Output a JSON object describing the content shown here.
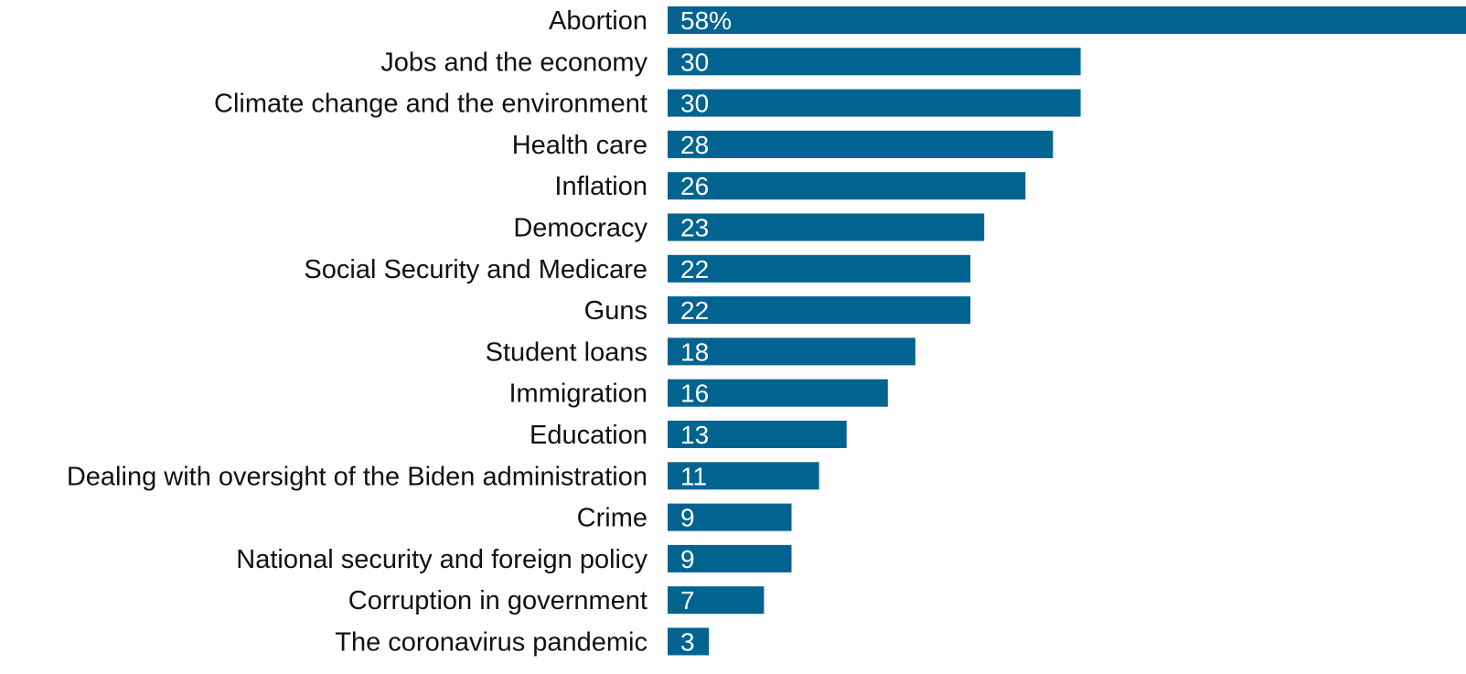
{
  "chart_data": {
    "type": "bar",
    "orientation": "horizontal",
    "title": "",
    "xlabel": "",
    "ylabel": "",
    "categories": [
      "Abortion",
      "Jobs and the economy",
      "Climate change and the environment",
      "Health care",
      "Inflation",
      "Democracy",
      "Social Security and Medicare",
      "Guns",
      "Student loans",
      "Immigration",
      "Education",
      "Dealing with oversight of the Biden administration",
      "Crime",
      "National security and foreign policy",
      "Corruption in government",
      "The coronavirus pandemic"
    ],
    "values": [
      58,
      30,
      30,
      28,
      26,
      23,
      22,
      22,
      18,
      16,
      13,
      11,
      9,
      9,
      7,
      3
    ],
    "value_labels": [
      "58%",
      "30",
      "30",
      "28",
      "26",
      "23",
      "22",
      "22",
      "18",
      "16",
      "13",
      "11",
      "9",
      "9",
      "7",
      "3"
    ],
    "xlim": [
      0,
      58
    ],
    "grid": false,
    "legend": "none",
    "bar_color": "#006390",
    "label_color": "#111111",
    "value_label_color": "#ffffff"
  }
}
